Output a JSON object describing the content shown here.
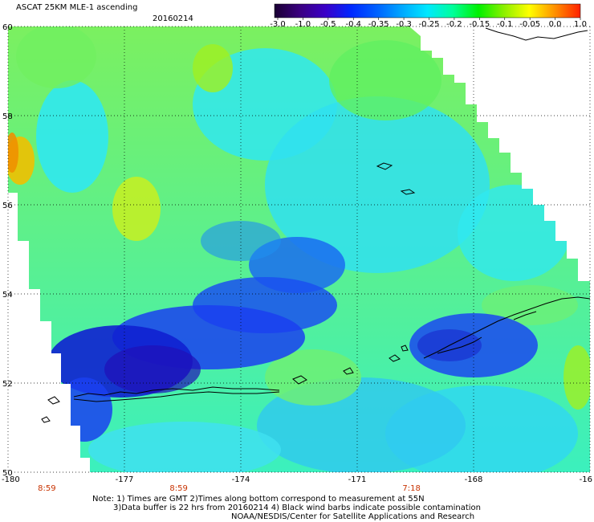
{
  "chart_data": {
    "type": "heatmap",
    "title": "ASCAT 25KM MLE-1 ascending",
    "date": "20160214",
    "colorbar": {
      "tick_labels": [
        "-3.0",
        "-1.0",
        "-0.5",
        "-0.4",
        "-0.35",
        "-0.3",
        "-0.25",
        "-0.2",
        "-0.15",
        "-0.1",
        "-0.05",
        "0.0",
        "1.0"
      ],
      "colors": [
        "#1a0033",
        "#3a0080",
        "#3a00c8",
        "#0028ff",
        "#0060ff",
        "#00a8ff",
        "#00e8ff",
        "#00ff9a",
        "#00f000",
        "#8cf000",
        "#ffff00",
        "#ff9000",
        "#ff2000"
      ]
    },
    "x_tick_labels": [
      "-180",
      "-177",
      "-174",
      "-171",
      "-168",
      "-16"
    ],
    "y_tick_labels": [
      "60",
      "58",
      "56",
      "54",
      "52",
      "50"
    ],
    "lon_range": [
      -180,
      -165
    ],
    "lat_range": [
      50,
      60
    ],
    "grid": true,
    "pass_times": [
      {
        "label": "8:59",
        "lon": -179
      },
      {
        "label": "8:59",
        "lon": -175.6
      },
      {
        "label": "7:18",
        "lon": -169.6
      }
    ],
    "dominant_values": {
      "north_and_west": "-0.25 to -0.15",
      "central_band_near_52N_to_54N": "-0.5 to -0.35",
      "west_edge_near_57N_to_58N": "-0.1 to 0.0"
    }
  },
  "notes": {
    "line1": "Note: 1) Times are GMT 2)Times along bottom correspond to measurement at 55N",
    "line2": "3)Data buffer is 22 hrs from 20160214 4) Black wind barbs indicate possible contamination",
    "line3": "NOAA/NESDIS/Center for Satellite Applications and Research"
  }
}
